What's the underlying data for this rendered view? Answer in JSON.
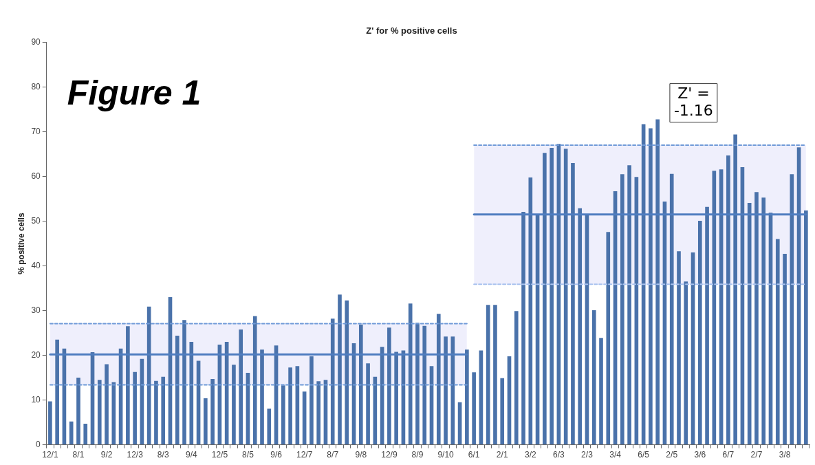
{
  "chart_data": {
    "type": "bar",
    "title": "Z' for % positive cells",
    "ylabel": "% positive cells",
    "categories": [
      "12/1",
      null,
      null,
      null,
      "8/1",
      null,
      null,
      null,
      "9/2",
      null,
      null,
      null,
      "12/3",
      null,
      null,
      null,
      "8/3",
      null,
      null,
      null,
      "9/4",
      null,
      null,
      null,
      "12/5",
      null,
      null,
      null,
      "8/5",
      null,
      null,
      null,
      "9/6",
      null,
      null,
      null,
      "12/7",
      null,
      null,
      null,
      "8/7",
      null,
      null,
      null,
      "9/8",
      null,
      null,
      null,
      "12/9",
      null,
      null,
      null,
      "8/9",
      null,
      null,
      null,
      "9/10",
      null,
      null,
      null,
      "6/1",
      null,
      null,
      null,
      "2/1",
      null,
      null,
      null,
      "3/2",
      null,
      null,
      null,
      "6/3",
      null,
      null,
      null,
      "2/3",
      null,
      null,
      null,
      "3/4",
      null,
      null,
      null,
      "6/5",
      null,
      null,
      null,
      "2/5",
      null,
      null,
      null,
      "3/6",
      null,
      null,
      null,
      "6/7",
      null,
      null,
      null,
      "2/7",
      null,
      null,
      null,
      "3/8",
      null,
      null,
      null
    ],
    "series": [
      {
        "type": "bar",
        "color": "#4a72aa",
        "values": [
          9.7,
          23.5,
          21.5,
          5.2,
          15,
          4.7,
          20.7,
          14.5,
          18,
          14,
          21.5,
          26.5,
          16.3,
          19.2,
          30.9,
          14.3,
          15.2,
          33,
          24.4,
          27.9,
          23,
          18.8,
          10.4,
          14.7,
          22.4,
          23,
          17.9,
          25.8,
          16.1,
          28.8,
          21.3,
          8.1,
          22.2,
          13.3,
          17.3,
          17.6,
          11.9,
          19.8,
          14.2,
          14.5,
          28.2,
          33.6,
          32.3,
          22.7,
          26.9,
          18.2,
          15.2,
          21.9,
          26.2,
          20.8,
          21.1,
          31.6,
          27.3,
          26.6,
          17.6,
          29.3,
          24.2,
          24.2,
          9.5,
          21.3,
          16.2,
          21.1,
          31.3,
          31.3,
          14.9,
          19.8,
          29.9,
          52.1,
          59.8,
          51.6,
          65.3,
          66.4,
          67.3,
          66.2,
          63,
          52.9,
          51.5,
          30.1,
          23.9,
          47.6,
          56.7,
          60.5,
          62.5,
          59.9,
          71.7,
          70.8,
          72.8,
          54.4,
          60.6,
          43.3,
          36.5,
          43,
          50.1,
          53.2,
          61.3,
          61.6,
          64.7,
          69.4,
          62.1,
          54.1,
          56.5,
          55.3,
          51.9,
          46,
          42.7,
          60.5,
          66.5,
          52.4
        ]
      },
      {
        "type": "line",
        "color": "#4f7dc0",
        "values": [
          20.2,
          20.2,
          20.2,
          20.2,
          20.2,
          20.2,
          20.2,
          20.2,
          20.2,
          20.2,
          20.2,
          20.2,
          20.2,
          20.2,
          20.2,
          20.2,
          20.2,
          20.2,
          20.2,
          20.2,
          20.2,
          20.2,
          20.2,
          20.2,
          20.2,
          20.2,
          20.2,
          20.2,
          20.2,
          20.2,
          20.2,
          20.2,
          20.2,
          20.2,
          20.2,
          20.2,
          20.2,
          20.2,
          20.2,
          20.2,
          20.2,
          20.2,
          20.2,
          20.2,
          20.2,
          20.2,
          20.2,
          20.2,
          20.2,
          20.2,
          20.2,
          20.2,
          20.2,
          20.2,
          20.2,
          20.2,
          20.2,
          20.2,
          20.2,
          20.2,
          null,
          null,
          null,
          null,
          null,
          null,
          null,
          null,
          null,
          null,
          null,
          null,
          null,
          null,
          null,
          null,
          null,
          null,
          null,
          null,
          null,
          null,
          null,
          null,
          null,
          null,
          null,
          null,
          null,
          null,
          null,
          null,
          null,
          null,
          null,
          null,
          null,
          null,
          null,
          null,
          null,
          null,
          null,
          null,
          null,
          null,
          null,
          null
        ],
        "lower": [
          13.4,
          13.4,
          13.4,
          13.4,
          13.4,
          13.4,
          13.4,
          13.4,
          13.4,
          13.4,
          13.4,
          13.4,
          13.4,
          13.4,
          13.4,
          13.4,
          13.4,
          13.4,
          13.4,
          13.4,
          13.4,
          13.4,
          13.4,
          13.4,
          13.4,
          13.4,
          13.4,
          13.4,
          13.4,
          13.4,
          13.4,
          13.4,
          13.4,
          13.4,
          13.4,
          13.4,
          13.4,
          13.4,
          13.4,
          13.4,
          13.4,
          13.4,
          13.4,
          13.4,
          13.4,
          13.4,
          13.4,
          13.4,
          13.4,
          13.4,
          13.4,
          13.4,
          13.4,
          13.4,
          13.4,
          13.4,
          13.4,
          13.4,
          13.4,
          13.4,
          null,
          null,
          null,
          null,
          null,
          null,
          null,
          null,
          null,
          null,
          null,
          null,
          null,
          null,
          null,
          null,
          null,
          null,
          null,
          null,
          null,
          null,
          null,
          null,
          null,
          null,
          null,
          null,
          null,
          null,
          null,
          null,
          null,
          null,
          null,
          null,
          null,
          null,
          null,
          null,
          null,
          null,
          null,
          null,
          null,
          null,
          null,
          null
        ],
        "upper": [
          27.1,
          27.1,
          27.1,
          27.1,
          27.1,
          27.1,
          27.1,
          27.1,
          27.1,
          27.1,
          27.1,
          27.1,
          27.1,
          27.1,
          27.1,
          27.1,
          27.1,
          27.1,
          27.1,
          27.1,
          27.1,
          27.1,
          27.1,
          27.1,
          27.1,
          27.1,
          27.1,
          27.1,
          27.1,
          27.1,
          27.1,
          27.1,
          27.1,
          27.1,
          27.1,
          27.1,
          27.1,
          27.1,
          27.1,
          27.1,
          27.1,
          27.1,
          27.1,
          27.1,
          27.1,
          27.1,
          27.1,
          27.1,
          27.1,
          27.1,
          27.1,
          27.1,
          27.1,
          27.1,
          27.1,
          27.1,
          27.1,
          27.1,
          27.1,
          27.1,
          null,
          null,
          null,
          null,
          null,
          null,
          null,
          null,
          null,
          null,
          null,
          null,
          null,
          null,
          null,
          null,
          null,
          null,
          null,
          null,
          null,
          null,
          null,
          null,
          null,
          null,
          null,
          null,
          null,
          null,
          null,
          null,
          null,
          null,
          null,
          null,
          null,
          null,
          null,
          null,
          null,
          null,
          null,
          null,
          null,
          null,
          null,
          null
        ]
      },
      {
        "type": "line",
        "color": "#4f7dc0",
        "values": [
          null,
          null,
          null,
          null,
          null,
          null,
          null,
          null,
          null,
          null,
          null,
          null,
          null,
          null,
          null,
          null,
          null,
          null,
          null,
          null,
          null,
          null,
          null,
          null,
          null,
          null,
          null,
          null,
          null,
          null,
          null,
          null,
          null,
          null,
          null,
          null,
          null,
          null,
          null,
          null,
          null,
          null,
          null,
          null,
          null,
          null,
          null,
          null,
          null,
          null,
          null,
          null,
          null,
          null,
          null,
          null,
          null,
          null,
          null,
          null,
          51.5,
          51.5,
          51.5,
          51.5,
          51.5,
          51.5,
          51.5,
          51.5,
          51.5,
          51.5,
          51.5,
          51.5,
          51.5,
          51.5,
          51.5,
          51.5,
          51.5,
          51.5,
          51.5,
          51.5,
          51.5,
          51.5,
          51.5,
          51.5,
          51.5,
          51.5,
          51.5,
          51.5,
          51.5,
          51.5,
          51.5,
          51.5,
          51.5,
          51.5,
          51.5,
          51.5,
          51.5,
          51.5,
          51.5,
          51.5,
          51.5,
          51.5,
          51.5,
          51.5,
          51.5,
          51.5,
          51.5,
          51.5
        ],
        "lower": [
          null,
          null,
          null,
          null,
          null,
          null,
          null,
          null,
          null,
          null,
          null,
          null,
          null,
          null,
          null,
          null,
          null,
          null,
          null,
          null,
          null,
          null,
          null,
          null,
          null,
          null,
          null,
          null,
          null,
          null,
          null,
          null,
          null,
          null,
          null,
          null,
          null,
          null,
          null,
          null,
          null,
          null,
          null,
          null,
          null,
          null,
          null,
          null,
          null,
          null,
          null,
          null,
          null,
          null,
          null,
          null,
          null,
          null,
          null,
          null,
          35.9,
          35.9,
          35.9,
          35.9,
          35.9,
          35.9,
          35.9,
          35.9,
          35.9,
          35.9,
          35.9,
          35.9,
          35.9,
          35.9,
          35.9,
          35.9,
          35.9,
          35.9,
          35.9,
          35.9,
          35.9,
          35.9,
          35.9,
          35.9,
          35.9,
          35.9,
          35.9,
          35.9,
          35.9,
          35.9,
          35.9,
          35.9,
          35.9,
          35.9,
          35.9,
          35.9,
          35.9,
          35.9,
          35.9,
          35.9,
          35.9,
          35.9,
          35.9,
          35.9,
          35.9,
          35.9,
          35.9,
          35.9
        ],
        "upper": [
          null,
          null,
          null,
          null,
          null,
          null,
          null,
          null,
          null,
          null,
          null,
          null,
          null,
          null,
          null,
          null,
          null,
          null,
          null,
          null,
          null,
          null,
          null,
          null,
          null,
          null,
          null,
          null,
          null,
          null,
          null,
          null,
          null,
          null,
          null,
          null,
          null,
          null,
          null,
          null,
          null,
          null,
          null,
          null,
          null,
          null,
          null,
          null,
          null,
          null,
          null,
          null,
          null,
          null,
          null,
          null,
          null,
          null,
          null,
          null,
          67.0,
          67.0,
          67.0,
          67.0,
          67.0,
          67.0,
          67.0,
          67.0,
          67.0,
          67.0,
          67.0,
          67.0,
          67.0,
          67.0,
          67.0,
          67.0,
          67.0,
          67.0,
          67.0,
          67.0,
          67.0,
          67.0,
          67.0,
          67.0,
          67.0,
          67.0,
          67.0,
          67.0,
          67.0,
          67.0,
          67.0,
          67.0,
          67.0,
          67.0,
          67.0,
          67.0,
          67.0,
          67.0,
          67.0,
          67.0,
          67.0,
          67.0,
          67.0,
          67.0,
          67.0,
          67.0,
          67.0,
          67.0
        ]
      },
      {
        "type": "line",
        "color": "#6f9ad8",
        "line_style": "dashed",
        "values": [
          13.4,
          13.4,
          13.4,
          13.4,
          13.4,
          13.4,
          13.4,
          13.4,
          13.4,
          13.4,
          13.4,
          13.4,
          13.4,
          13.4,
          13.4,
          13.4,
          13.4,
          13.4,
          13.4,
          13.4,
          13.4,
          13.4,
          13.4,
          13.4,
          13.4,
          13.4,
          13.4,
          13.4,
          13.4,
          13.4,
          13.4,
          13.4,
          13.4,
          13.4,
          13.4,
          13.4,
          13.4,
          13.4,
          13.4,
          13.4,
          13.4,
          13.4,
          13.4,
          13.4,
          13.4,
          13.4,
          13.4,
          13.4,
          13.4,
          13.4,
          13.4,
          13.4,
          13.4,
          13.4,
          13.4,
          13.4,
          13.4,
          13.4,
          13.4,
          13.4,
          null,
          null,
          null,
          null,
          null,
          null,
          null,
          null,
          null,
          null,
          null,
          null,
          null,
          null,
          null,
          null,
          null,
          null,
          null,
          null,
          null,
          null,
          null,
          null,
          null,
          null,
          null,
          null,
          null,
          null,
          null,
          null,
          null,
          null,
          null,
          null,
          null,
          null,
          null,
          null,
          null,
          null,
          null,
          null,
          null,
          null,
          null,
          null
        ]
      },
      {
        "type": "line",
        "color": "#6f9ad8",
        "line_style": "dashed",
        "values": [
          27.1,
          27.1,
          27.1,
          27.1,
          27.1,
          27.1,
          27.1,
          27.1,
          27.1,
          27.1,
          27.1,
          27.1,
          27.1,
          27.1,
          27.1,
          27.1,
          27.1,
          27.1,
          27.1,
          27.1,
          27.1,
          27.1,
          27.1,
          27.1,
          27.1,
          27.1,
          27.1,
          27.1,
          27.1,
          27.1,
          27.1,
          27.1,
          27.1,
          27.1,
          27.1,
          27.1,
          27.1,
          27.1,
          27.1,
          27.1,
          27.1,
          27.1,
          27.1,
          27.1,
          27.1,
          27.1,
          27.1,
          27.1,
          27.1,
          27.1,
          27.1,
          27.1,
          27.1,
          27.1,
          27.1,
          27.1,
          27.1,
          27.1,
          27.1,
          27.1,
          null,
          null,
          null,
          null,
          null,
          null,
          null,
          null,
          null,
          null,
          null,
          null,
          null,
          null,
          null,
          null,
          null,
          null,
          null,
          null,
          null,
          null,
          null,
          null,
          null,
          null,
          null,
          null,
          null,
          null,
          null,
          null,
          null,
          null,
          null,
          null,
          null,
          null,
          null,
          null,
          null,
          null,
          null,
          null,
          null,
          null,
          null,
          null
        ]
      },
      {
        "type": "line",
        "color": "#a9c2ee",
        "line_style": "dashed",
        "values": [
          null,
          null,
          null,
          null,
          null,
          null,
          null,
          null,
          null,
          null,
          null,
          null,
          null,
          null,
          null,
          null,
          null,
          null,
          null,
          null,
          null,
          null,
          null,
          null,
          null,
          null,
          null,
          null,
          null,
          null,
          null,
          null,
          null,
          null,
          null,
          null,
          null,
          null,
          null,
          null,
          null,
          null,
          null,
          null,
          null,
          null,
          null,
          null,
          null,
          null,
          null,
          null,
          null,
          null,
          null,
          null,
          null,
          null,
          null,
          null,
          35.9,
          35.9,
          35.9,
          35.9,
          35.9,
          35.9,
          35.9,
          35.9,
          35.9,
          35.9,
          35.9,
          35.9,
          35.9,
          35.9,
          35.9,
          35.9,
          35.9,
          35.9,
          35.9,
          35.9,
          35.9,
          35.9,
          35.9,
          35.9,
          35.9,
          35.9,
          35.9,
          35.9,
          35.9,
          35.9,
          35.9,
          35.9,
          35.9,
          35.9,
          35.9,
          35.9,
          35.9,
          35.9,
          35.9,
          35.9,
          35.9,
          35.9,
          35.9,
          35.9,
          35.9,
          35.9,
          35.9,
          35.9
        ]
      },
      {
        "type": "line",
        "color": "#6f9ad8",
        "line_style": "dashed",
        "values": [
          null,
          null,
          null,
          null,
          null,
          null,
          null,
          null,
          null,
          null,
          null,
          null,
          null,
          null,
          null,
          null,
          null,
          null,
          null,
          null,
          null,
          null,
          null,
          null,
          null,
          null,
          null,
          null,
          null,
          null,
          null,
          null,
          null,
          null,
          null,
          null,
          null,
          null,
          null,
          null,
          null,
          null,
          null,
          null,
          null,
          null,
          null,
          null,
          null,
          null,
          null,
          null,
          null,
          null,
          null,
          null,
          null,
          null,
          null,
          null,
          67.0,
          67.0,
          67.0,
          67.0,
          67.0,
          67.0,
          67.0,
          67.0,
          67.0,
          67.0,
          67.0,
          67.0,
          67.0,
          67.0,
          67.0,
          67.0,
          67.0,
          67.0,
          67.0,
          67.0,
          67.0,
          67.0,
          67.0,
          67.0,
          67.0,
          67.0,
          67.0,
          67.0,
          67.0,
          67.0,
          67.0,
          67.0,
          67.0,
          67.0,
          67.0,
          67.0,
          67.0,
          67.0,
          67.0,
          67.0,
          67.0,
          67.0,
          67.0,
          67.0,
          67.0,
          67.0,
          67.0,
          67.0
        ]
      }
    ],
    "ylim": [
      0,
      90
    ],
    "yticks": [
      0,
      10,
      20,
      30,
      40,
      50,
      60,
      70,
      80,
      90
    ],
    "grid": false,
    "legend": false,
    "annotations": [
      "Figure 1",
      "Z' = -1.16"
    ]
  }
}
